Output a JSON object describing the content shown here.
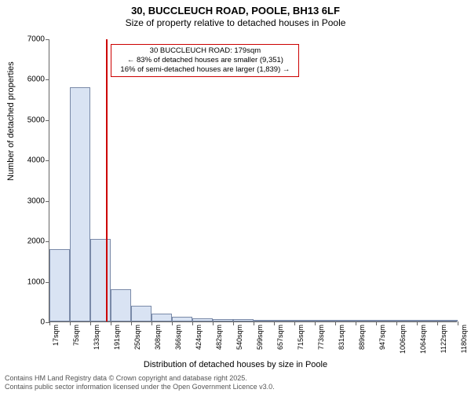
{
  "title_line1": "30, BUCCLEUCH ROAD, POOLE, BH13 6LF",
  "title_line2": "Size of property relative to detached houses in Poole",
  "y_axis_label": "Number of detached properties",
  "x_axis_label": "Distribution of detached houses by size in Poole",
  "footer_line1": "Contains HM Land Registry data © Crown copyright and database right 2025.",
  "footer_line2": "Contains public sector information licensed under the Open Government Licence v3.0.",
  "chart": {
    "type": "histogram",
    "y_min": 0,
    "y_max": 7000,
    "y_tick_step": 1000,
    "bar_fill": "#d9e3f3",
    "bar_border": "#7a8aa8",
    "background": "#ffffff",
    "axis_color": "#666666",
    "marker_value": 179,
    "marker_color": "#cc0000",
    "annotation": {
      "lines": [
        "30 BUCCLEUCH ROAD: 179sqm",
        "← 83% of detached houses are smaller (9,351)",
        "16% of semi-detached houses are larger (1,839) →"
      ],
      "border_color": "#cc0000"
    },
    "x_ticks": [
      17,
      75,
      133,
      191,
      250,
      308,
      366,
      424,
      482,
      540,
      599,
      657,
      715,
      773,
      831,
      889,
      947,
      1006,
      1064,
      1122,
      1180
    ],
    "x_tick_suffix": "sqm",
    "bars": [
      {
        "x0": 17,
        "x1": 75,
        "value": 1780
      },
      {
        "x0": 75,
        "x1": 133,
        "value": 5800
      },
      {
        "x0": 133,
        "x1": 191,
        "value": 2050
      },
      {
        "x0": 191,
        "x1": 250,
        "value": 800
      },
      {
        "x0": 250,
        "x1": 308,
        "value": 380
      },
      {
        "x0": 308,
        "x1": 366,
        "value": 190
      },
      {
        "x0": 366,
        "x1": 424,
        "value": 120
      },
      {
        "x0": 424,
        "x1": 482,
        "value": 80
      },
      {
        "x0": 482,
        "x1": 540,
        "value": 60
      },
      {
        "x0": 540,
        "x1": 599,
        "value": 50
      },
      {
        "x0": 599,
        "x1": 657,
        "value": 30
      },
      {
        "x0": 657,
        "x1": 715,
        "value": 20
      },
      {
        "x0": 715,
        "x1": 773,
        "value": 15
      },
      {
        "x0": 773,
        "x1": 831,
        "value": 10
      },
      {
        "x0": 831,
        "x1": 889,
        "value": 8
      },
      {
        "x0": 889,
        "x1": 947,
        "value": 6
      },
      {
        "x0": 947,
        "x1": 1006,
        "value": 5
      },
      {
        "x0": 1006,
        "x1": 1064,
        "value": 4
      },
      {
        "x0": 1064,
        "x1": 1122,
        "value": 3
      },
      {
        "x0": 1122,
        "x1": 1180,
        "value": 2
      }
    ]
  }
}
